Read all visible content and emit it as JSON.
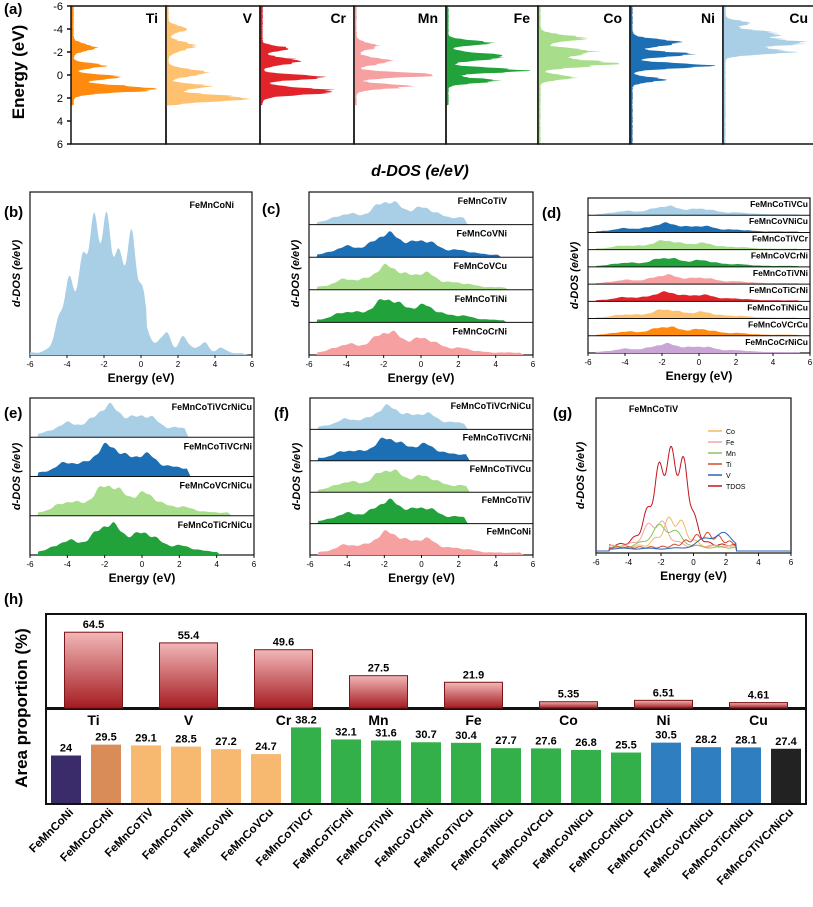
{
  "figure": {
    "panel_labels": {
      "a": "(a)",
      "b": "(b)",
      "c": "(c)",
      "d": "(d)",
      "e": "(e)",
      "f": "(f)",
      "g": "(g)",
      "h": "(h)"
    },
    "shared_x_label": "Energy (eV)",
    "shared_y_label": "d-DOS (e/eV)",
    "energy_ticks": [
      "-6",
      "-4",
      "-2",
      "0",
      "2",
      "4",
      "6"
    ]
  },
  "chart_data": [
    {
      "id": "a",
      "type": "area",
      "orientation": "horizontal-dos",
      "ylabel": "Energy (eV)",
      "xlabel": "d-DOS (e/eV)",
      "ylim": [
        6,
        -6
      ],
      "y_ticks": [
        "-6",
        "-4",
        "-2",
        "0",
        "2",
        "4",
        "6"
      ],
      "elements": [
        {
          "name": "Ti",
          "color": "#ff8a0d"
        },
        {
          "name": "V",
          "color": "#fdc16f"
        },
        {
          "name": "Cr",
          "color": "#e2242a"
        },
        {
          "name": "Mn",
          "color": "#f7a0a1"
        },
        {
          "name": "Fe",
          "color": "#22a23a"
        },
        {
          "name": "Co",
          "color": "#a8dd8b"
        },
        {
          "name": "Ni",
          "color": "#1d6fb5"
        },
        {
          "name": "Cu",
          "color": "#a9cfe6"
        }
      ]
    },
    {
      "id": "b",
      "type": "area",
      "xlabel": "Energy (eV)",
      "ylabel": "d-DOS (e/eV)",
      "xlim": [
        -6,
        6
      ],
      "series": [
        {
          "name": "FeMnCoNi",
          "color": "#a9cfe6"
        }
      ]
    },
    {
      "id": "c",
      "type": "area",
      "stacked_panels": true,
      "xlabel": "Energy (eV)",
      "ylabel": "d-DOS (e/eV)",
      "xlim": [
        -6,
        6
      ],
      "series": [
        {
          "name": "FeMnCoTiV",
          "color": "#a9cfe6",
          "edge": 2.5
        },
        {
          "name": "FeMnCoVNi",
          "color": "#1d6fb5",
          "edge": 4.3
        },
        {
          "name": "FeMnCoVCu",
          "color": "#a8dd8b",
          "edge": 4.7
        },
        {
          "name": "FeMnCoTiNi",
          "color": "#22a23a",
          "edge": 4.6
        },
        {
          "name": "FeMnCoCrNi",
          "color": "#f7a0a1",
          "edge": 5.5
        }
      ]
    },
    {
      "id": "d",
      "type": "area",
      "stacked_panels": true,
      "xlabel": "Energy (eV)",
      "ylabel": "d-DOS (e/eV)",
      "xlim": [
        -6,
        6
      ],
      "series": [
        {
          "name": "FeMnCoTiVCu",
          "color": "#a9cfe6",
          "edge": 5.5
        },
        {
          "name": "FeMnCoVNiCu",
          "color": "#1d6fb5",
          "edge": 5.5
        },
        {
          "name": "FeMnCoTiVCr",
          "color": "#a8dd8b",
          "edge": 5.5
        },
        {
          "name": "FeMnCoVCrNi",
          "color": "#22a23a",
          "edge": 5.5
        },
        {
          "name": "FeMnCoTiVNi",
          "color": "#f7a0a1",
          "edge": 5.5
        },
        {
          "name": "FeMnCoTiCrNi",
          "color": "#e2242a",
          "edge": 5.5
        },
        {
          "name": "FeMnCoTiNiCu",
          "color": "#fdc16f",
          "edge": 5.5
        },
        {
          "name": "FeMnCoVCrCu",
          "color": "#ff8a0d",
          "edge": 5.5
        },
        {
          "name": "FeMnCoCrNiCu",
          "color": "#c9a6d6",
          "edge": 5.5
        }
      ]
    },
    {
      "id": "e",
      "type": "area",
      "stacked_panels": true,
      "xlabel": "Energy (eV)",
      "ylabel": "d-DOS (e/eV)",
      "xlim": [
        -6,
        6
      ],
      "series": [
        {
          "name": "FeMnCoTiVCrNiCu",
          "color": "#a9cfe6",
          "edge": 2.5
        },
        {
          "name": "FeMnCoTiVCrNi",
          "color": "#1d6fb5",
          "edge": 2.6
        },
        {
          "name": "FeMnCoVCrNiCu",
          "color": "#a8dd8b",
          "edge": 4.8
        },
        {
          "name": "FeMnCoTiCrNiCu",
          "color": "#22a23a",
          "edge": 4.2
        }
      ]
    },
    {
      "id": "f",
      "type": "area",
      "stacked_panels": true,
      "xlabel": "Energy (eV)",
      "ylabel": "d-DOS (e/eV)",
      "xlim": [
        -6,
        6
      ],
      "series": [
        {
          "name": "FeMnCoTiVCrNiCu",
          "color": "#a9cfe6",
          "edge": 2.5
        },
        {
          "name": "FeMnCoTiVCrNi",
          "color": "#1d6fb5",
          "edge": 2.6
        },
        {
          "name": "FeMnCoTiVCu",
          "color": "#a8dd8b",
          "edge": 2.6
        },
        {
          "name": "FeMnCoTiV",
          "color": "#22a23a",
          "edge": 2.5
        },
        {
          "name": "FeMnCoNi",
          "color": "#f7a0a1",
          "edge": 5.5
        }
      ]
    },
    {
      "id": "g",
      "type": "line",
      "title": "FeMnCoTiV",
      "xlabel": "Energy (eV)",
      "ylabel": "d-DOS (e/eV)",
      "xlim": [
        -6,
        6
      ],
      "legend": [
        {
          "name": "Co",
          "color": "#f5b861"
        },
        {
          "name": "Fe",
          "color": "#f0a6a6"
        },
        {
          "name": "Mn",
          "color": "#8cc35a"
        },
        {
          "name": "Ti",
          "color": "#d44a2a"
        },
        {
          "name": "V",
          "color": "#2a62b8"
        },
        {
          "name": "TDOS",
          "color": "#c4161c"
        }
      ]
    },
    {
      "id": "h-top",
      "type": "bar",
      "categories": [
        "Ti",
        "V",
        "Cr",
        "Mn",
        "Fe",
        "Co",
        "Ni",
        "Cu"
      ],
      "values": [
        64.5,
        55.4,
        49.6,
        27.5,
        21.9,
        5.35,
        6.51,
        4.61
      ],
      "labels": [
        "64.5",
        "55.4",
        "49.6",
        "27.5",
        "21.9",
        "5.35",
        "6.51",
        "4.61"
      ],
      "ylim": [
        0,
        80
      ],
      "ylabel": "Area proportion (%)",
      "color": "#a7262b"
    },
    {
      "id": "h-bottom",
      "type": "bar",
      "categories": [
        "FeMnCoNi",
        "FeMnCoCrNi",
        "FeMnCoTiV",
        "FeMnCoTiNi",
        "FeMnCoVNi",
        "FeMnCoVCu",
        "FeMnCoTiVCr",
        "FeMnCoTiCrNi",
        "FeMnCoTiVNi",
        "FeMnCoVCrNi",
        "FeMnCoTiVCu",
        "FeMnCoTiNiCu",
        "FeMnCoVCrCu",
        "FeMnCoVNiCu",
        "FeMnCoCrNiCu",
        "FeMnCoTiVCrNi",
        "FeMnCoVCrNiCu",
        "FeMnCoTiCrNiCu",
        "FeMnCoTiVCrNiCu"
      ],
      "values": [
        24,
        29.5,
        29.1,
        28.5,
        27.2,
        24.7,
        38.2,
        32.1,
        31.6,
        30.7,
        30.4,
        27.7,
        27.6,
        26.8,
        25.5,
        30.5,
        28.2,
        28.1,
        27.4
      ],
      "labels": [
        "24",
        "29.5",
        "29.1",
        "28.5",
        "27.2",
        "24.7",
        "38.2",
        "32.1",
        "31.6",
        "30.7",
        "30.4",
        "27.7",
        "27.6",
        "26.8",
        "25.5",
        "30.5",
        "28.2",
        "28.1",
        "27.4"
      ],
      "ylim": [
        0,
        48
      ],
      "colors": [
        "#3a2b6b",
        "#d98b58",
        "#f7b870",
        "#f7b870",
        "#f7b870",
        "#f7b870",
        "#33b04a",
        "#33b04a",
        "#33b04a",
        "#33b04a",
        "#33b04a",
        "#33b04a",
        "#33b04a",
        "#33b04a",
        "#33b04a",
        "#2f7fc0",
        "#2f7fc0",
        "#2f7fc0",
        "#222222"
      ]
    }
  ]
}
